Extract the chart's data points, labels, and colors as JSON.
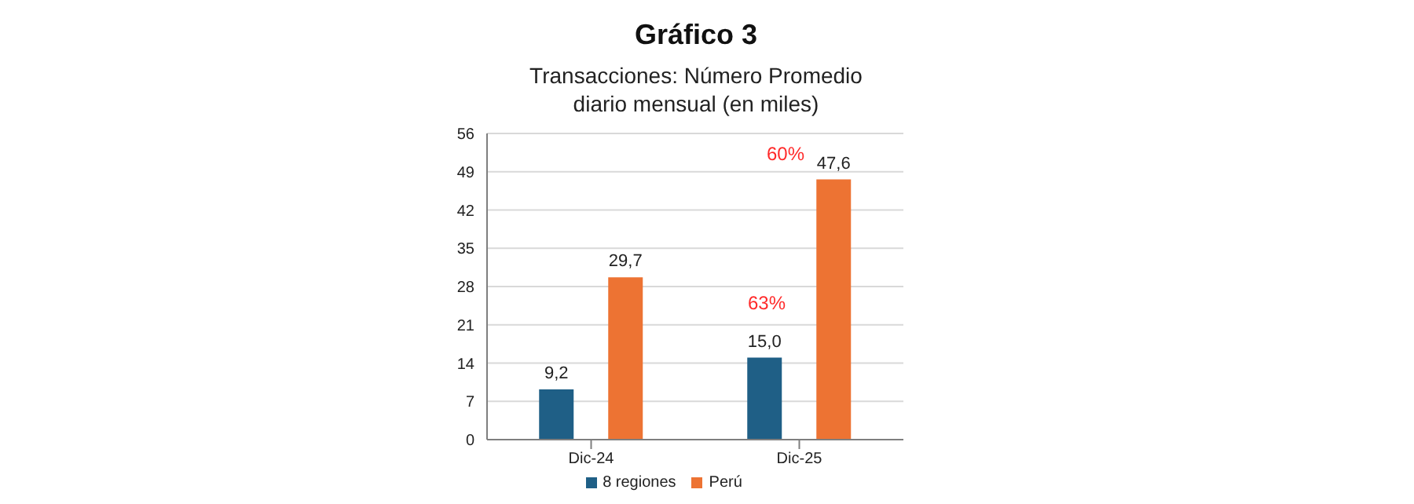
{
  "chart_data": {
    "type": "bar",
    "title": "Gráfico 3",
    "subtitle": "Transacciones: Número Promedio diario mensual (en miles)",
    "categories": [
      "Dic-24",
      "Dic-25"
    ],
    "series": [
      {
        "name": "8 regiones",
        "color": "#1f5f86",
        "values": [
          9.2,
          15.0
        ],
        "value_labels": [
          "9,2",
          "15,0"
        ]
      },
      {
        "name": "Perú",
        "color": "#ed7333",
        "values": [
          29.7,
          47.6
        ],
        "value_labels": [
          "29,7",
          "47,6"
        ]
      }
    ],
    "annotations": [
      "63%",
      "60%"
    ],
    "ylim": [
      0,
      56
    ],
    "yticks": [
      0,
      7,
      14,
      21,
      28,
      35,
      42,
      49,
      56
    ],
    "grid": "y",
    "legend": "bottom"
  }
}
